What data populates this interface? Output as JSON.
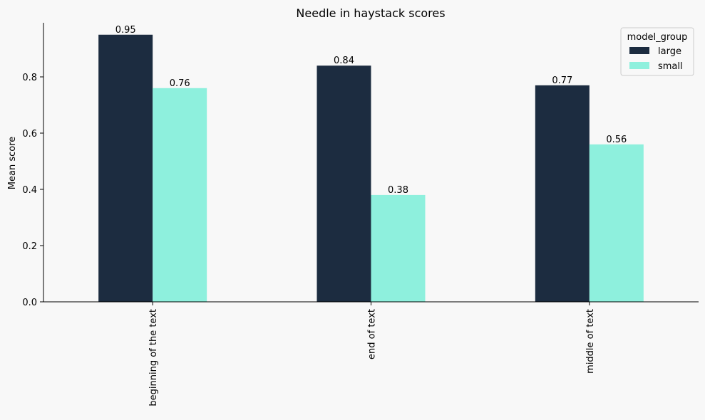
{
  "chart_data": {
    "type": "bar",
    "title": "Needle in haystack scores",
    "xlabel": "",
    "ylabel": "Mean score",
    "categories": [
      "beginning of the text",
      "end of text",
      "middle of text"
    ],
    "series": [
      {
        "name": "large",
        "values": [
          0.95,
          0.84,
          0.77
        ],
        "color": "#1c2c40",
        "labels": [
          "0.95",
          "0.84",
          "0.77"
        ]
      },
      {
        "name": "small",
        "values": [
          0.76,
          0.38,
          0.56
        ],
        "color": "#8ef0dd",
        "labels": [
          "0.76",
          "0.38",
          "0.56"
        ]
      }
    ],
    "ylim": [
      0,
      1.0
    ],
    "yticks": [
      "0.0",
      "0.2",
      "0.4",
      "0.6",
      "0.8"
    ],
    "legend": {
      "title": "model_group",
      "placement": "top-right"
    },
    "grid": false,
    "background": "#f8f8f8"
  }
}
